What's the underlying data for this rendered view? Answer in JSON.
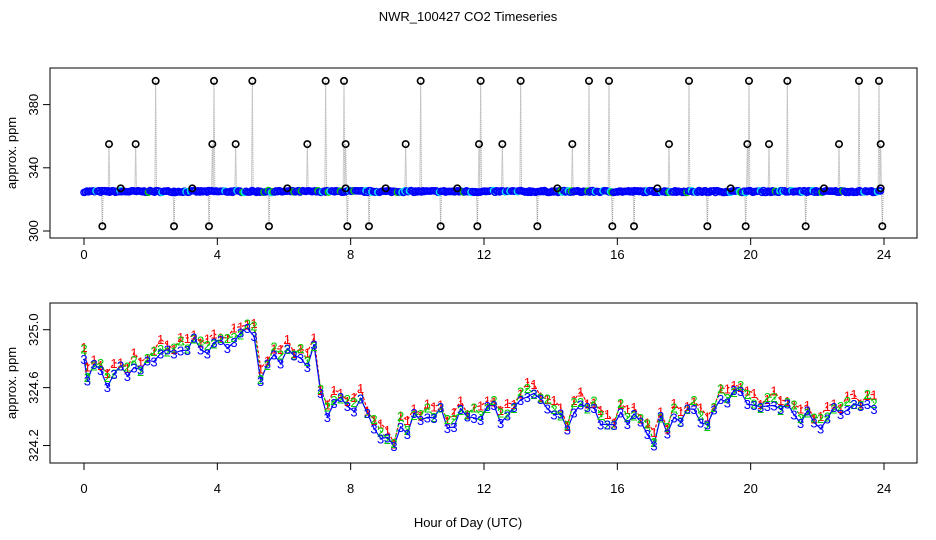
{
  "title": "NWR_100427  CO2 Timeseries",
  "xlabel": "Hour of Day (UTC)",
  "colors": {
    "frame": "#000000",
    "grey_line": "#9a9a9a",
    "point_outline": "#000000",
    "blue": "#0000ff",
    "cyan": "#00e5ee",
    "green": "#00cc00",
    "red": "#ff0000"
  },
  "chart_data": [
    {
      "type": "scatter",
      "panel": "top",
      "ylabel": "approx. ppm",
      "xlim": [
        0,
        24
      ],
      "ylim": [
        300,
        400
      ],
      "x_ticks": [
        0,
        4,
        8,
        12,
        16,
        20,
        24
      ],
      "y_ticks": [
        300,
        340,
        380
      ],
      "y_tick_labels": [
        "300",
        "340",
        "380"
      ],
      "baseline": 325,
      "spikes_high_x": [
        2.15,
        3.9,
        5.05,
        7.25,
        7.8,
        10.1,
        11.9,
        13.1,
        15.15,
        15.75,
        18.15,
        19.95,
        21.1,
        23.25,
        23.85
      ],
      "spikes_high_y": 395,
      "spikes_mid_x": [
        0.75,
        1.55,
        3.85,
        4.55,
        6.7,
        7.85,
        9.65,
        11.85,
        12.55,
        14.65,
        17.55,
        19.9,
        20.55,
        22.65,
        23.9
      ],
      "spikes_mid_y": 355,
      "spikes_low_x": [
        0.55,
        2.7,
        3.75,
        5.55,
        7.9,
        8.55,
        10.7,
        11.8,
        13.6,
        15.85,
        16.5,
        18.7,
        19.85,
        21.65,
        23.95
      ],
      "spikes_low_y": 303,
      "bumps_x": [
        1.1,
        3.25,
        6.1,
        7.85,
        9.05,
        11.2,
        14.2,
        17.2,
        19.4,
        22.2,
        23.9
      ],
      "bumps_y": 327
    },
    {
      "type": "line",
      "panel": "bottom",
      "ylabel": "approx. ppm",
      "xlim": [
        0,
        24
      ],
      "ylim": [
        324.1,
        325.15
      ],
      "x_ticks": [
        0,
        4,
        8,
        12,
        16,
        20,
        24
      ],
      "y_ticks": [
        324.2,
        324.6,
        325.0
      ],
      "y_tick_labels": [
        "324.2",
        "324.6",
        "325.0"
      ],
      "series": [
        {
          "name": "1",
          "color": "#ff0000",
          "offset": 0.06
        },
        {
          "name": "2",
          "color": "#00cc00",
          "offset": 0.03
        },
        {
          "name": "3",
          "color": "#0000ff",
          "offset": 0.0
        }
      ],
      "x": [
        0.0,
        0.1,
        0.3,
        0.5,
        0.7,
        0.9,
        1.1,
        1.3,
        1.5,
        1.7,
        1.9,
        2.1,
        2.3,
        2.5,
        2.7,
        2.9,
        3.1,
        3.3,
        3.5,
        3.7,
        3.9,
        4.1,
        4.3,
        4.5,
        4.7,
        4.9,
        5.1,
        5.3,
        5.5,
        5.7,
        5.9,
        6.1,
        6.3,
        6.5,
        6.7,
        6.9,
        7.1,
        7.3,
        7.5,
        7.7,
        7.9,
        8.1,
        8.3,
        8.5,
        8.7,
        8.9,
        9.1,
        9.3,
        9.5,
        9.7,
        9.9,
        10.1,
        10.3,
        10.5,
        10.7,
        10.9,
        11.1,
        11.3,
        11.5,
        11.7,
        11.9,
        12.1,
        12.3,
        12.5,
        12.7,
        12.9,
        13.1,
        13.3,
        13.5,
        13.7,
        13.9,
        14.1,
        14.3,
        14.5,
        14.7,
        14.9,
        15.1,
        15.3,
        15.5,
        15.7,
        15.9,
        16.1,
        16.3,
        16.5,
        16.7,
        16.9,
        17.1,
        17.3,
        17.5,
        17.7,
        17.9,
        18.1,
        18.3,
        18.5,
        18.7,
        18.9,
        19.1,
        19.3,
        19.5,
        19.7,
        19.9,
        20.1,
        20.3,
        20.5,
        20.7,
        20.9,
        21.1,
        21.3,
        21.5,
        21.7,
        21.9,
        22.1,
        22.3,
        22.5,
        22.7,
        22.9,
        23.1,
        23.3,
        23.5,
        23.7
      ],
      "y": [
        324.82,
        324.66,
        324.74,
        324.72,
        324.63,
        324.69,
        324.73,
        324.69,
        324.76,
        324.71,
        324.77,
        324.8,
        324.85,
        324.84,
        324.83,
        324.88,
        324.86,
        324.92,
        324.87,
        324.86,
        324.9,
        324.91,
        324.89,
        324.93,
        324.96,
        325.0,
        324.98,
        324.65,
        324.74,
        324.83,
        324.79,
        324.86,
        324.8,
        324.82,
        324.76,
        324.88,
        324.55,
        324.42,
        324.5,
        324.51,
        324.47,
        324.46,
        324.52,
        324.4,
        324.33,
        324.27,
        324.24,
        324.18,
        324.35,
        324.29,
        324.4,
        324.37,
        324.42,
        324.39,
        324.44,
        324.33,
        324.35,
        324.44,
        324.38,
        324.41,
        324.39,
        324.45,
        324.47,
        324.38,
        324.41,
        324.44,
        324.52,
        324.56,
        324.55,
        324.5,
        324.47,
        324.43,
        324.4,
        324.3,
        324.45,
        324.49,
        324.44,
        324.46,
        324.37,
        324.34,
        324.32,
        324.44,
        324.37,
        324.4,
        324.35,
        324.3,
        324.21,
        324.38,
        324.28,
        324.42,
        324.36,
        324.43,
        324.46,
        324.38,
        324.33,
        324.43,
        324.54,
        324.51,
        324.56,
        324.57,
        324.51,
        324.48,
        324.44,
        324.48,
        324.5,
        324.44,
        324.47,
        324.43,
        324.37,
        324.42,
        324.35,
        324.34,
        324.39,
        324.44,
        324.42,
        324.47,
        324.48,
        324.45,
        324.5,
        324.47
      ]
    }
  ]
}
